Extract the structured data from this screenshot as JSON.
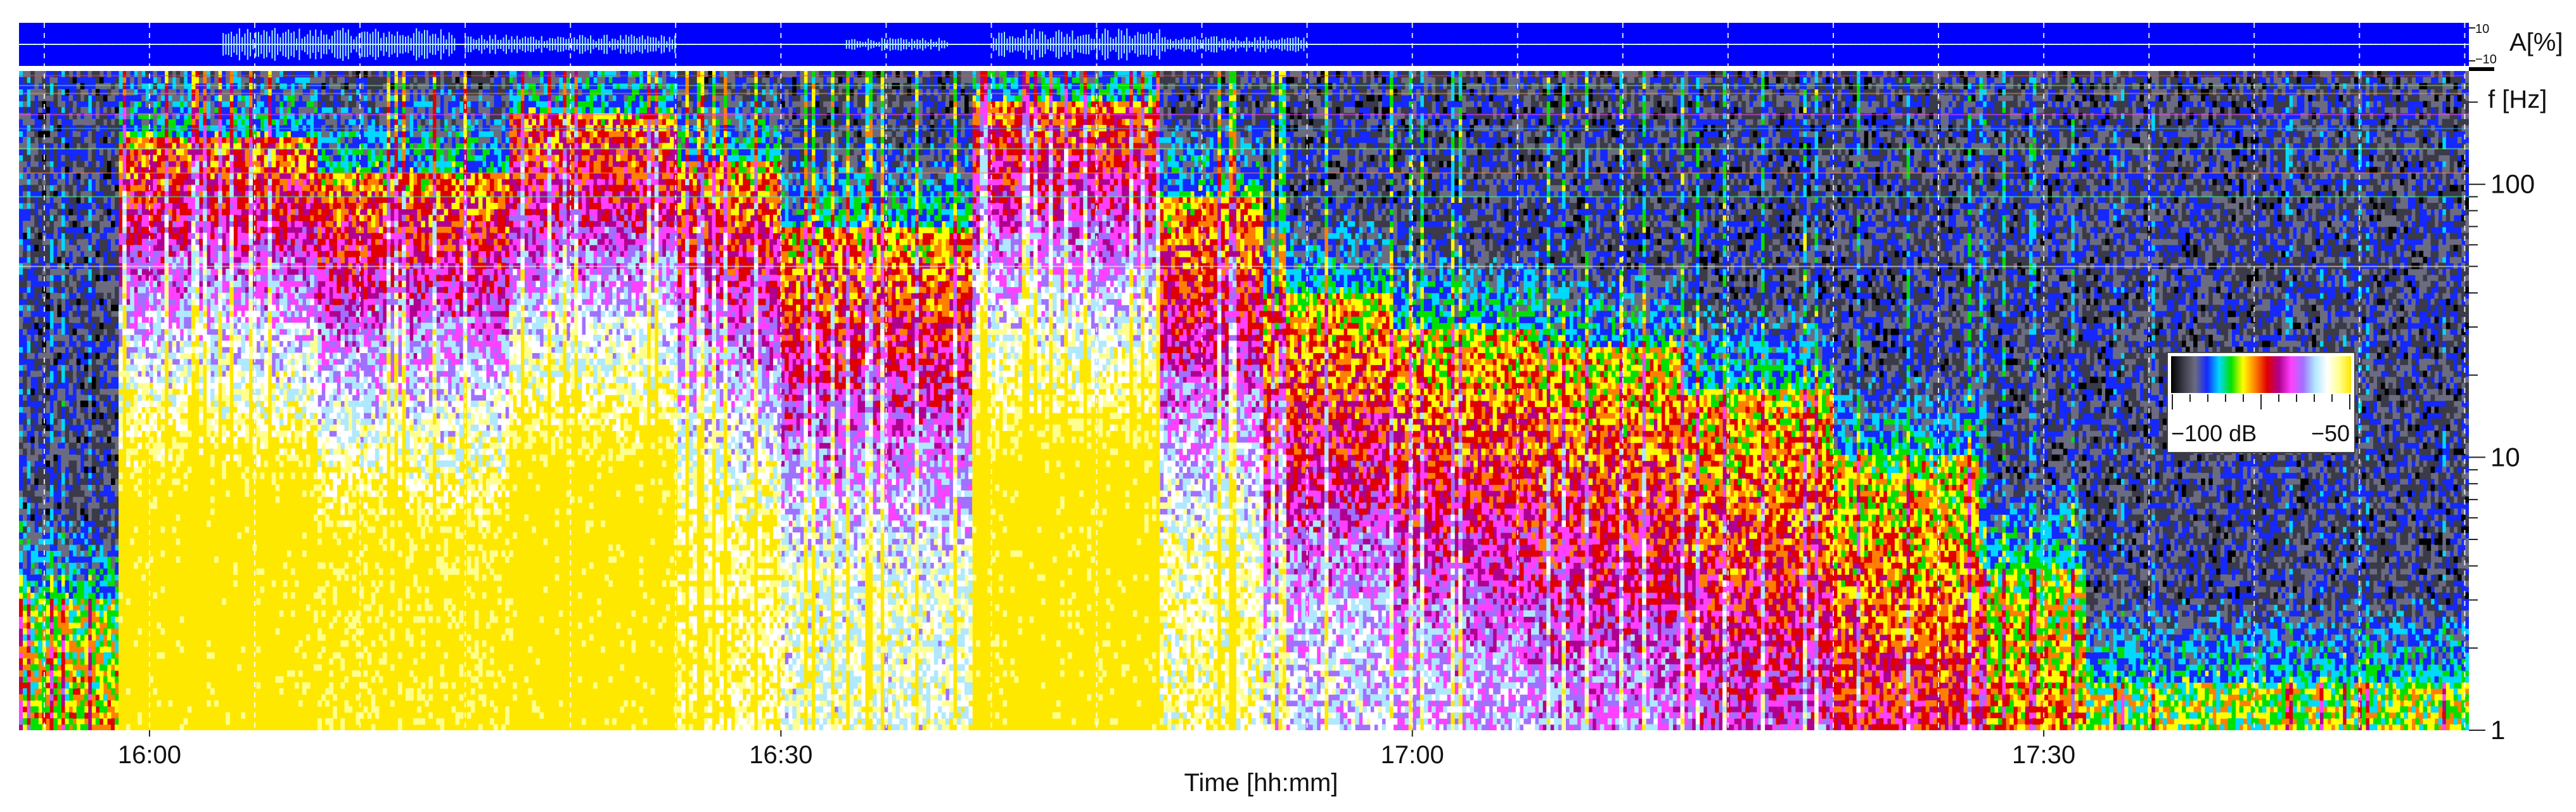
{
  "chart_data": {
    "type": "heatmap",
    "title": "",
    "xlabel": "Time [hh:mm]",
    "x_ticks": [
      "16:00",
      "16:30",
      "17:00",
      "17:30"
    ],
    "x_tick_values_min": [
      960,
      990,
      1020,
      1050
    ],
    "xlim_min": [
      953.8,
      1070.2
    ],
    "ylabel": "f [Hz]",
    "y_scale": "log",
    "ylim": [
      1,
      260
    ],
    "y_ticks": [
      "1",
      "10",
      "100"
    ],
    "y_tick_values": [
      1,
      10,
      100
    ],
    "amplitude_panel": {
      "label": "A[%]",
      "ticks": [
        "10",
        "−10"
      ],
      "tick_values": [
        10,
        -10
      ],
      "bursts_min": [
        {
          "t0": 963.5,
          "t1": 974.5,
          "level": 1.0
        },
        {
          "t0": 975.0,
          "t1": 985.0,
          "level": 0.6
        },
        {
          "t0": 993.0,
          "t1": 998.0,
          "level": 0.4
        },
        {
          "t0": 1000.0,
          "t1": 1008.0,
          "level": 1.0
        },
        {
          "t0": 1008.0,
          "t1": 1015.0,
          "level": 0.5
        }
      ]
    },
    "colorbar": {
      "labels": [
        "−100 dB",
        "−50"
      ],
      "values_db": [
        -100,
        -50
      ],
      "colors": [
        "#000000",
        "#3a3a48",
        "#6c6c80",
        "#1428ff",
        "#00d8ff",
        "#00e000",
        "#ffff00",
        "#ff8000",
        "#e00000",
        "#b00090",
        "#ff40ff",
        "#a070ff",
        "#b0e8ff",
        "#ffffff",
        "#ffff90",
        "#ffe800"
      ]
    },
    "activity_bands_min": [
      {
        "t0": 958.5,
        "t1": 968.0,
        "top_hz": 150,
        "level": 0.95
      },
      {
        "t0": 968.0,
        "t1": 977.0,
        "top_hz": 110,
        "level": 0.9
      },
      {
        "t0": 977.0,
        "t1": 985.0,
        "top_hz": 180,
        "level": 0.95
      },
      {
        "t0": 985.0,
        "t1": 990.0,
        "top_hz": 120,
        "level": 0.8
      },
      {
        "t0": 990.0,
        "t1": 999.0,
        "top_hz": 70,
        "level": 0.7
      },
      {
        "t0": 999.0,
        "t1": 1008.0,
        "top_hz": 200,
        "level": 0.95
      },
      {
        "t0": 1008.0,
        "t1": 1013.0,
        "top_hz": 90,
        "level": 0.75
      },
      {
        "t0": 1013.0,
        "t1": 1019.0,
        "top_hz": 40,
        "level": 0.6
      },
      {
        "t0": 1019.0,
        "t1": 1026.0,
        "top_hz": 30,
        "level": 0.55
      },
      {
        "t0": 1026.0,
        "t1": 1033.0,
        "top_hz": 25,
        "level": 0.5
      },
      {
        "t0": 1033.0,
        "t1": 1040.0,
        "top_hz": 18,
        "level": 0.45
      },
      {
        "t0": 1040.0,
        "t1": 1047.0,
        "top_hz": 10,
        "level": 0.38
      },
      {
        "t0": 1047.0,
        "t1": 1052.0,
        "top_hz": 4,
        "level": 0.3
      },
      {
        "t0": 1052.0,
        "t1": 1070.2,
        "top_hz": 1.5,
        "level": 0.15
      }
    ],
    "tonal_lines_hz": [
      250,
      230,
      215,
      180,
      160,
      135,
      110,
      90,
      50
    ],
    "grid": true
  }
}
